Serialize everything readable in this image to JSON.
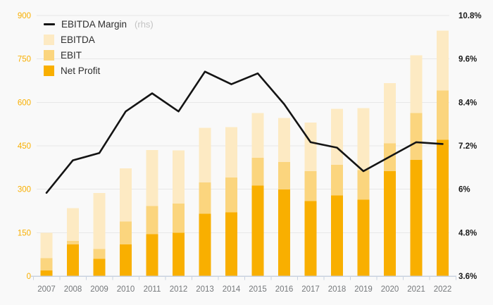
{
  "chart_data": {
    "type": "combo_bar_line",
    "bar_style": "overlapped",
    "grid": true,
    "legend_position": "top-left",
    "categories": [
      "2007",
      "2008",
      "2009",
      "2010",
      "2011",
      "2012",
      "2013",
      "2014",
      "2015",
      "2016",
      "2017",
      "2018",
      "2019",
      "2020",
      "2021",
      "2022"
    ],
    "series": [
      {
        "name": "EBITDA Margin",
        "suffix": "(rhs)",
        "type": "line",
        "axis": "right",
        "unit": "%",
        "color": "#141414",
        "values": [
          5.9,
          6.8,
          7.0,
          8.15,
          8.65,
          8.15,
          9.25,
          8.9,
          9.2,
          8.35,
          7.3,
          7.15,
          6.5,
          6.9,
          7.3,
          7.25
        ]
      },
      {
        "name": "EBITDA",
        "type": "bar",
        "axis": "left",
        "color": "#fdeac3",
        "values": [
          150,
          235,
          287,
          372,
          435,
          434,
          512,
          514,
          563,
          546,
          530,
          578,
          580,
          666,
          762,
          848
        ]
      },
      {
        "name": "EBIT",
        "type": "bar",
        "axis": "left",
        "color": "#fbd57e",
        "values": [
          62,
          122,
          94,
          189,
          242,
          250,
          324,
          341,
          409,
          394,
          362,
          384,
          366,
          459,
          563,
          641
        ]
      },
      {
        "name": "Net Profit",
        "type": "bar",
        "axis": "left",
        "color": "#f9af00",
        "values": [
          20,
          110,
          60,
          110,
          145,
          150,
          215,
          220,
          313,
          299,
          259,
          279,
          264,
          362,
          401,
          471
        ]
      }
    ],
    "left_axis": {
      "range": [
        0,
        900
      ],
      "tick_labels": [
        "0",
        "150",
        "300",
        "450",
        "600",
        "750",
        "900"
      ],
      "color": "#f9af00"
    },
    "right_axis": {
      "range": [
        3.6,
        10.8
      ],
      "tick_labels": [
        "3.6%",
        "4.8%",
        "6%",
        "7.2%",
        "8.4%",
        "9.6%",
        "10.8%"
      ],
      "color": "#1a1a1a"
    },
    "x_axis": {
      "label_color": "#75787b"
    }
  },
  "legend": {
    "items": [
      {
        "label": "EBITDA Margin",
        "suffix": "(rhs)",
        "swatch": "line",
        "color": "#141414"
      },
      {
        "label": "EBITDA",
        "suffix": "",
        "swatch": "square",
        "color": "#fdeac3"
      },
      {
        "label": "EBIT",
        "suffix": "",
        "swatch": "square",
        "color": "#fbd57e"
      },
      {
        "label": "Net Profit",
        "suffix": "",
        "swatch": "square",
        "color": "#f9af00"
      }
    ]
  },
  "colors": {
    "background": "#f9f9f9",
    "gridline": "#e8e8e8",
    "axis_line": "#c9d2e0"
  }
}
